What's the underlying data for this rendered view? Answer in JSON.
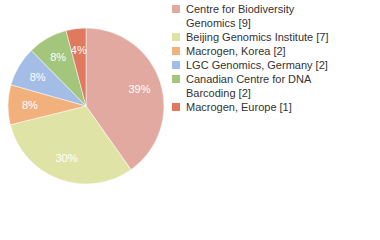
{
  "chart_data": {
    "type": "pie",
    "categories": [
      "Centre for Biodiversity Genomics [9]",
      "Beijing Genomics Institute [7]",
      "Macrogen, Korea [2]",
      "LGC Genomics, Germany [2]",
      "Canadian Centre for DNA Barcoding [2]",
      "Macrogen, Europe [1]"
    ],
    "values": [
      39,
      30,
      8,
      8,
      8,
      4
    ],
    "value_labels": [
      "39%",
      "30%",
      "8%",
      "8%",
      "8%",
      "4%"
    ],
    "colors": [
      "#e2a9a1",
      "#dfe4a6",
      "#f1b07c",
      "#a4bde6",
      "#a3c67c",
      "#e07a5f"
    ],
    "data_labels": true,
    "legend": "right"
  }
}
